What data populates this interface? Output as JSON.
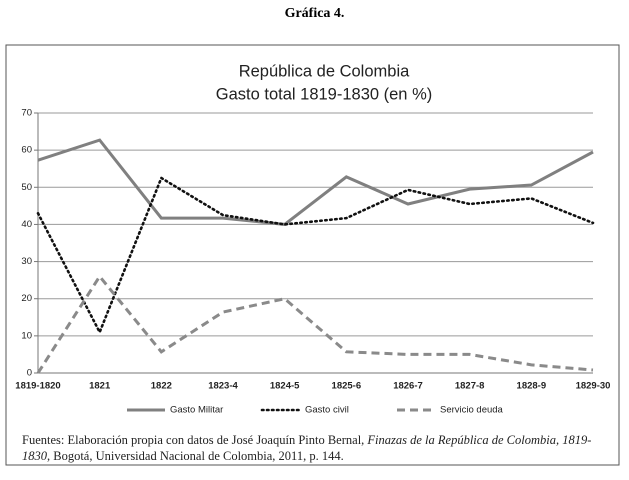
{
  "heading": "Gráfica 4.",
  "chart_data": {
    "type": "line",
    "title": [
      "República de Colombia",
      "Gasto total 1819-1830 (en %)"
    ],
    "categories": [
      "1819-1820",
      "1821",
      "1822",
      "1823-4",
      "1824-5",
      "1825-6",
      "1826-7",
      "1827-8",
      "1828-9",
      "1829-30"
    ],
    "series": [
      {
        "name": "Gasto Militar",
        "color": "#808080",
        "dash": "solid",
        "values": [
          57.3,
          62.7,
          41.7,
          41.7,
          40,
          52.8,
          45.5,
          49.5,
          50.6,
          59.5
        ]
      },
      {
        "name": "Gasto civil",
        "color": "#111111",
        "dash": "dotted",
        "values": [
          43,
          11,
          52.5,
          42.5,
          40,
          41.7,
          49.3,
          45.5,
          47,
          40.4
        ]
      },
      {
        "name": "Servicio deuda",
        "color": "#8a8a8a",
        "dash": "dashed",
        "values": [
          0,
          26,
          5.7,
          16.4,
          20,
          5.7,
          5,
          5,
          2.2,
          0.8
        ]
      }
    ],
    "ylim": [
      0,
      70
    ],
    "yticks": [
      0,
      10,
      20,
      30,
      40,
      50,
      60,
      70
    ],
    "grid": true,
    "legend": "bottom"
  },
  "source": {
    "prefix": "Fuentes: Elaboración propia con datos de José Joaquín Pinto Bernal, ",
    "italic": "Finazas de la República de Colombia, 1819-1830",
    "suffix": ", Bogotá, Universidad Nacional de Colombia, 2011, p. 144."
  }
}
